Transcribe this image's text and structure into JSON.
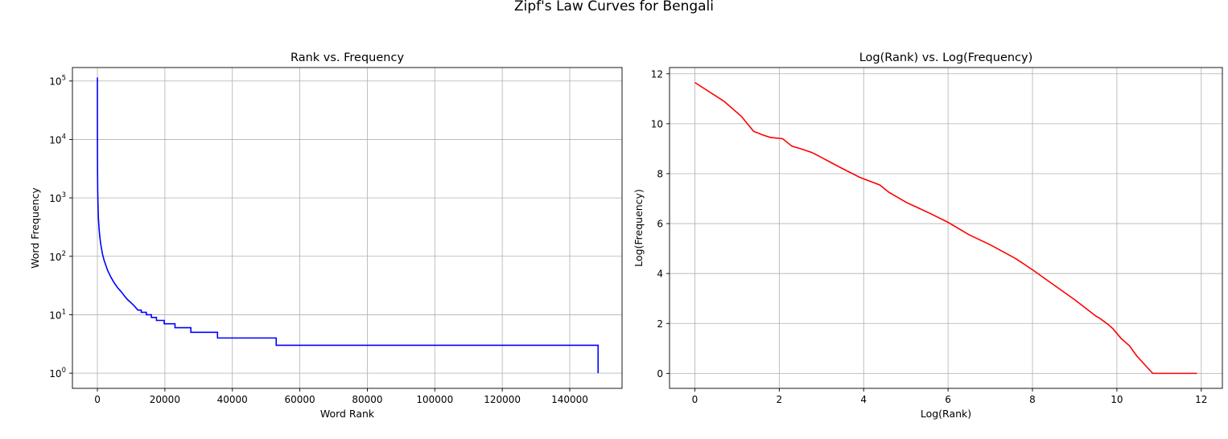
{
  "figure": {
    "suptitle": "Zipf's Law Curves for Bengali"
  },
  "chart_data": [
    {
      "type": "line",
      "title": "Rank vs. Frequency",
      "xlabel": "Word Rank",
      "ylabel": "Word Frequency",
      "yscale": "log",
      "grid": true,
      "color": "#0000ff",
      "xlim": [
        -7400,
        155500
      ],
      "ylim": [
        0.55,
        170000
      ],
      "xticks": [
        0,
        20000,
        40000,
        60000,
        80000,
        100000,
        120000,
        140000
      ],
      "xtick_labels": [
        "0",
        "20000",
        "40000",
        "60000",
        "80000",
        "100000",
        "120000",
        "140000"
      ],
      "yticks": [
        1,
        10,
        100,
        1000,
        10000,
        100000
      ],
      "ytick_labels": [
        {
          "base": "10",
          "exp": "0"
        },
        {
          "base": "10",
          "exp": "1"
        },
        {
          "base": "10",
          "exp": "2"
        },
        {
          "base": "10",
          "exp": "3"
        },
        {
          "base": "10",
          "exp": "4"
        },
        {
          "base": "10",
          "exp": "5"
        }
      ],
      "series": [
        {
          "x": [
            1,
            10,
            50,
            100,
            200,
            300,
            500,
            700,
            1000,
            1500,
            2000,
            3000,
            4000,
            5000,
            6000,
            7000,
            8000,
            9000,
            10000,
            11000,
            12000,
            13000,
            14500,
            16000,
            17500,
            19800,
            23000,
            27700,
            35600,
            53000,
            148400
          ],
          "y": [
            115000,
            10000,
            2500,
            1300,
            700,
            450,
            300,
            220,
            160,
            110,
            85,
            58,
            44,
            35,
            29,
            25,
            21,
            18,
            16,
            14,
            12,
            11,
            10,
            9,
            8,
            7,
            6,
            5,
            4,
            3,
            2
          ]
        }
      ]
    },
    {
      "type": "line",
      "title": "Log(Rank) vs. Log(Frequency)",
      "xlabel": "Log(Rank)",
      "ylabel": "Log(Frequency)",
      "grid": true,
      "color": "#ff0000",
      "xlim": [
        -0.6,
        12.5
      ],
      "ylim": [
        -0.6,
        12.25
      ],
      "xticks": [
        0,
        2,
        4,
        6,
        8,
        10,
        12
      ],
      "xtick_labels": [
        "0",
        "2",
        "4",
        "6",
        "8",
        "10",
        "12"
      ],
      "yticks": [
        0,
        2,
        4,
        6,
        8,
        10,
        12
      ],
      "ytick_labels": [
        "0",
        "2",
        "4",
        "6",
        "8",
        "10",
        "12"
      ],
      "series": [
        {
          "x": [
            0,
            0.69,
            1.1,
            1.39,
            1.61,
            1.79,
            2.08,
            2.3,
            2.5,
            2.77,
            3.0,
            3.22,
            3.5,
            3.91,
            4.38,
            4.6,
            5.01,
            5.52,
            6.0,
            6.5,
            7.0,
            7.6,
            8.0,
            8.5,
            9.0,
            9.5,
            9.6,
            9.8,
            9.9,
            10.0,
            10.1,
            10.3,
            10.47,
            10.85,
            11.9
          ],
          "y": [
            11.65,
            10.9,
            10.3,
            9.7,
            9.55,
            9.45,
            9.4,
            9.1,
            9.0,
            8.85,
            8.65,
            8.45,
            8.2,
            7.85,
            7.55,
            7.25,
            6.85,
            6.45,
            6.05,
            5.55,
            5.15,
            4.6,
            4.15,
            3.55,
            2.95,
            2.3,
            2.2,
            1.95,
            1.8,
            1.6,
            1.4,
            1.1,
            0.7,
            0.0,
            0.0
          ]
        }
      ]
    }
  ]
}
